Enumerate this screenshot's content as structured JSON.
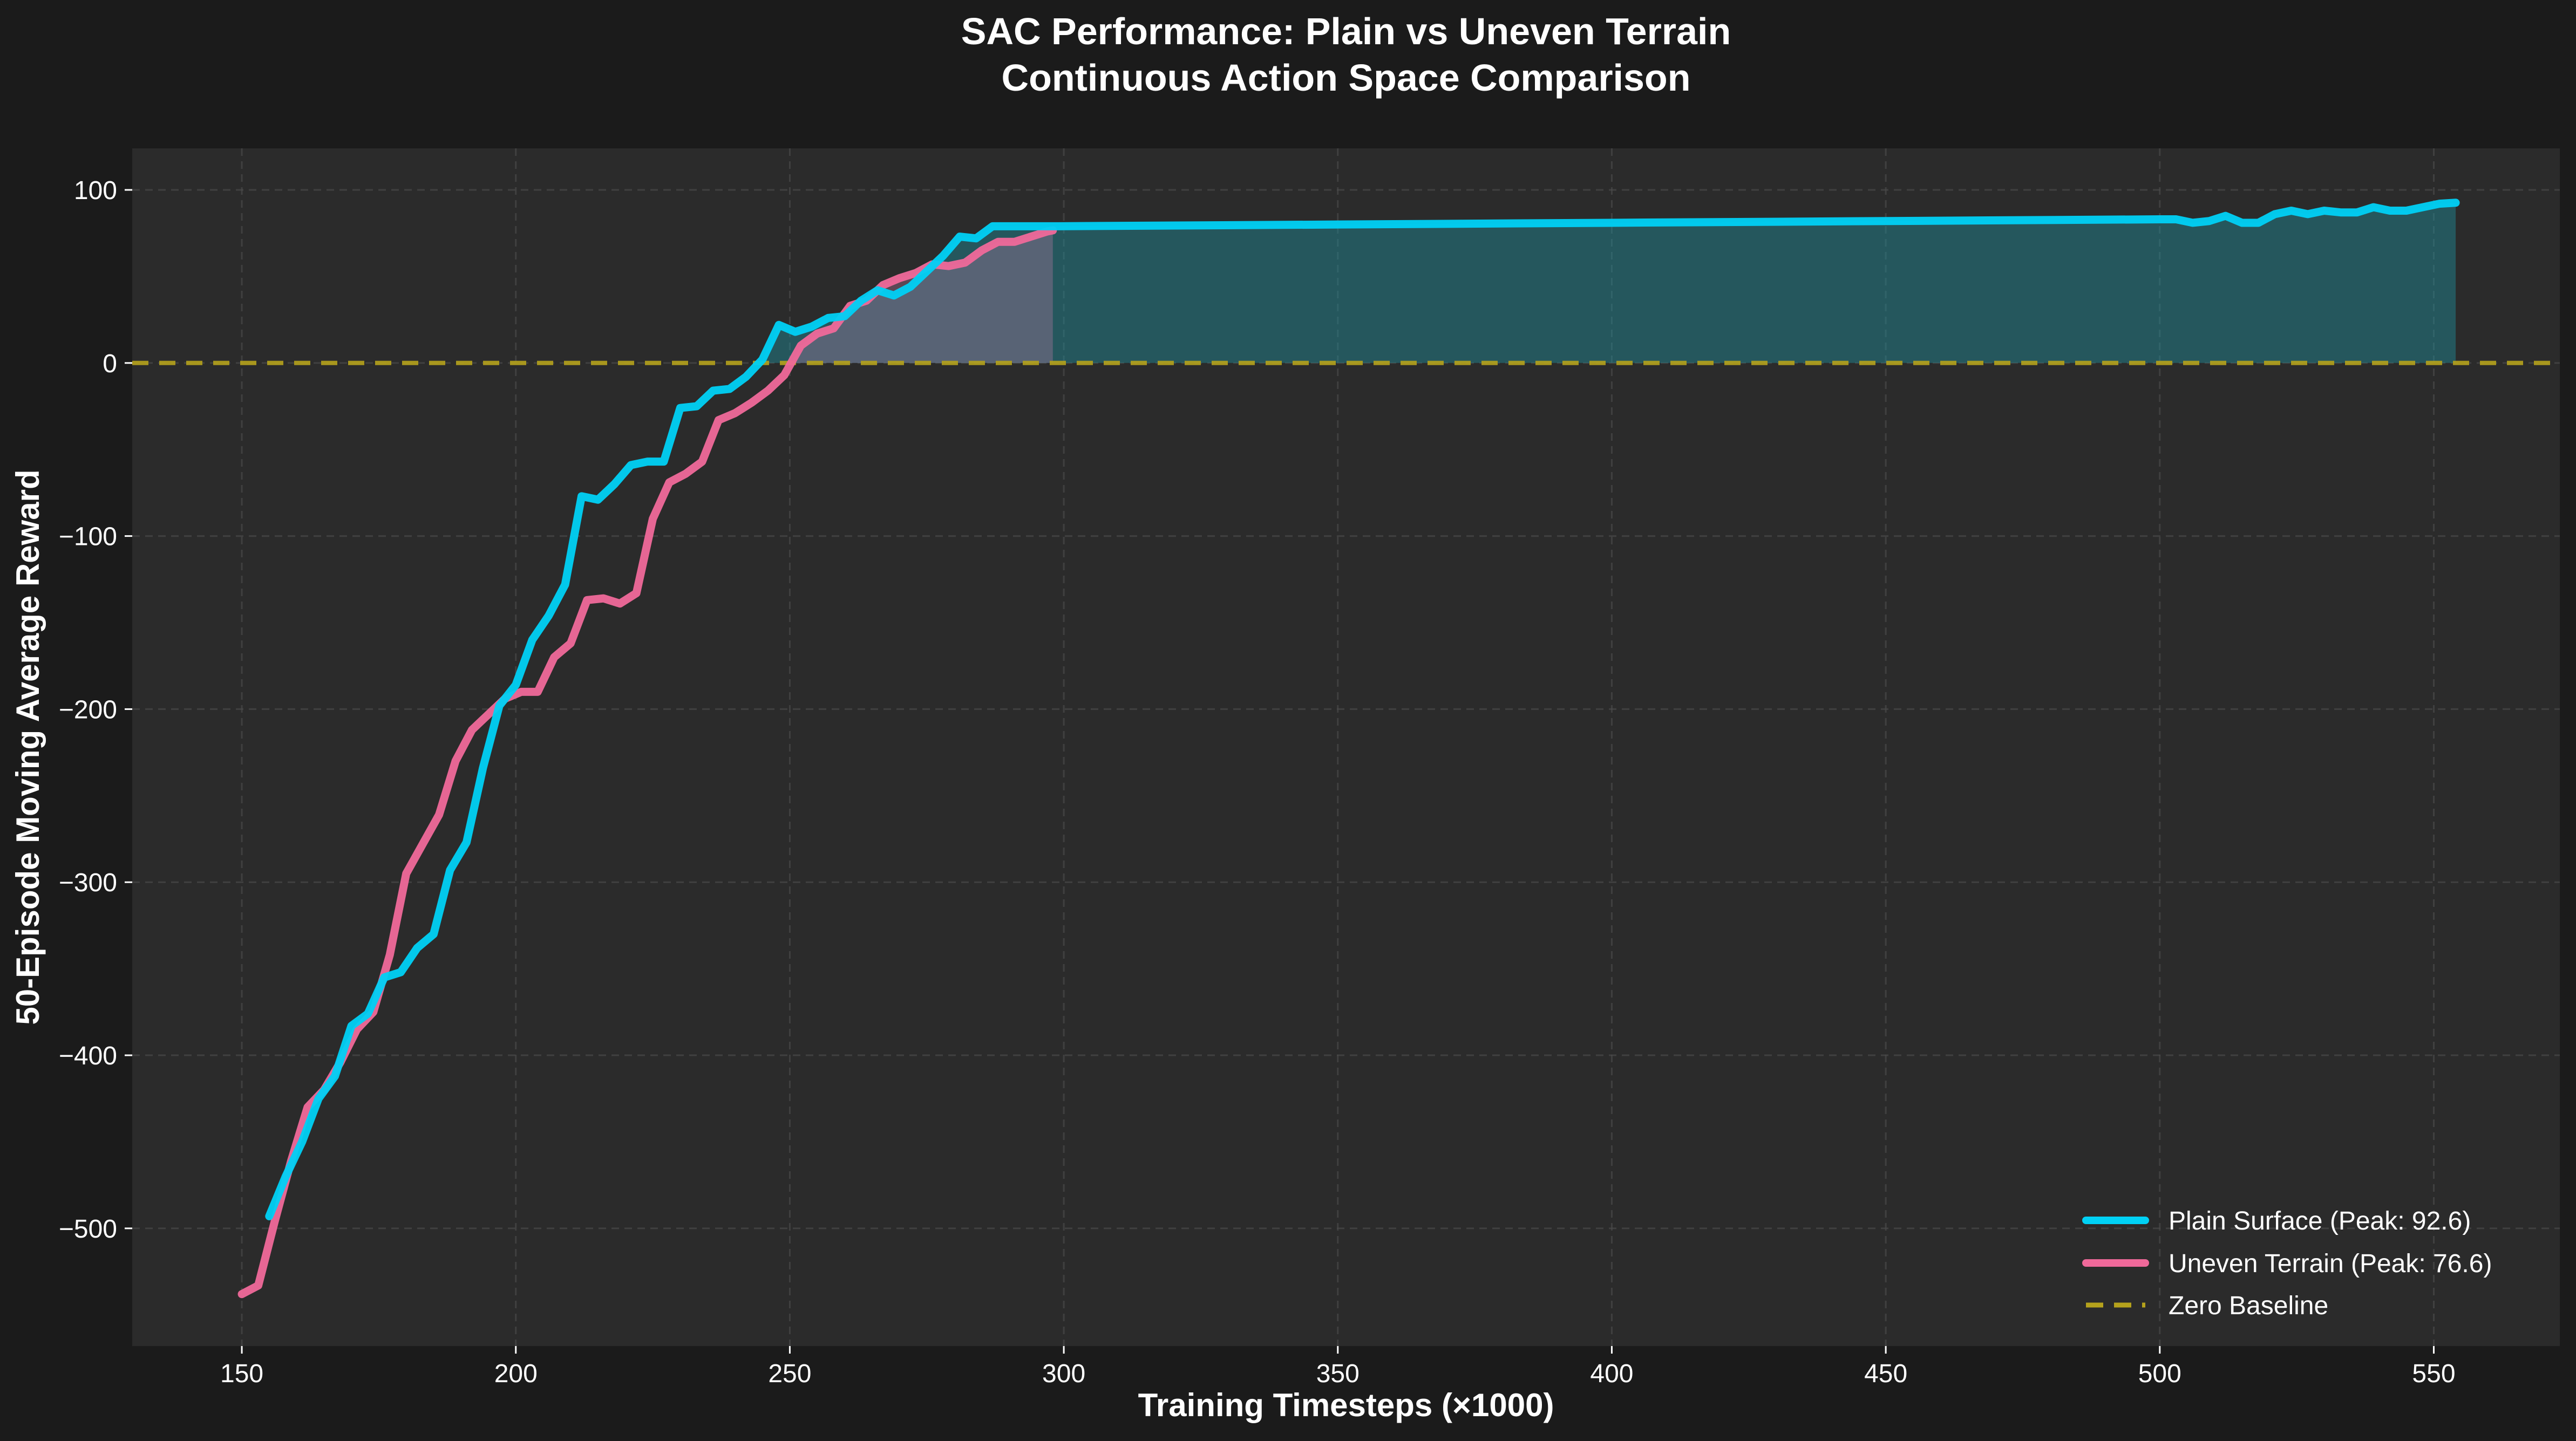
{
  "chart_data": {
    "type": "line",
    "title": "SAC Performance: Plain vs Uneven Terrain",
    "subtitle": "Continuous Action Space Comparison",
    "xlabel": "Training Timesteps (×1000)",
    "ylabel": "50-Episode Moving Average Reward",
    "xlim": [
      130,
      573
    ],
    "ylim": [
      -568,
      124
    ],
    "xticks": [
      150,
      200,
      250,
      300,
      350,
      400,
      450,
      500,
      550
    ],
    "yticks": [
      -500,
      -400,
      -300,
      -200,
      -100,
      0,
      100
    ],
    "ytick_labels": [
      "−500",
      "−400",
      "−300",
      "−200",
      "−100",
      "0",
      "100"
    ],
    "grid": true,
    "legend_position": "bottom-right",
    "colors": {
      "background": "#1b1b1b",
      "plot_background": "#2b2b2b",
      "grid": "#4a4a4a",
      "baseline": "#b5a21c",
      "fill": "#2a6b72"
    },
    "series": [
      {
        "name": "Plain Surface (Peak: 92.6)",
        "color": "#00d1f5",
        "x": [
          155,
          158,
          161,
          164,
          167,
          170,
          173,
          176,
          179,
          182,
          185,
          188,
          191,
          194,
          197,
          200,
          203,
          206,
          209,
          212,
          215,
          218,
          221,
          224,
          227,
          230,
          233,
          236,
          239,
          242,
          245,
          248,
          251,
          254,
          257,
          260,
          263,
          266,
          269,
          272,
          275,
          278,
          281,
          284,
          287,
          290,
          293,
          296,
          299,
          350,
          400,
          450,
          500,
          503,
          506,
          509,
          512,
          515,
          518,
          521,
          524,
          527,
          530,
          533,
          536,
          539,
          542,
          545,
          548,
          551,
          554
        ],
        "y": [
          -493,
          -470,
          -450,
          -425,
          -412,
          -383,
          -376,
          -355,
          -352,
          -338,
          -330,
          -293,
          -277,
          -234,
          -198,
          -186,
          -160,
          -146,
          -128,
          -77,
          -79,
          -70,
          -59,
          -57,
          -57,
          -26,
          -25,
          -16,
          -15,
          -8,
          2,
          22,
          18,
          21,
          26,
          27,
          36,
          42,
          39,
          44,
          53,
          62,
          73,
          72,
          79,
          79,
          79,
          79,
          79,
          80,
          81,
          82,
          83,
          83,
          81,
          82,
          85,
          81,
          81,
          86,
          88,
          86,
          88,
          87,
          87,
          90,
          88,
          88,
          90,
          92,
          92.6
        ]
      },
      {
        "name": "Uneven Terrain (Peak: 76.6)",
        "color": "#f0699a",
        "x": [
          150,
          153,
          156,
          159,
          162,
          165,
          168,
          171,
          174,
          177,
          180,
          183,
          186,
          189,
          192,
          195,
          198,
          201,
          204,
          207,
          210,
          213,
          216,
          219,
          222,
          225,
          228,
          231,
          234,
          237,
          240,
          243,
          246,
          249,
          252,
          255,
          258,
          261,
          264,
          267,
          270,
          273,
          276,
          279,
          282,
          285,
          288,
          291,
          294,
          297,
          298
        ],
        "y": [
          -538,
          -533,
          -496,
          -461,
          -430,
          -420,
          -404,
          -385,
          -375,
          -342,
          -295,
          -278,
          -261,
          -230,
          -212,
          -203,
          -194,
          -190,
          -190,
          -170,
          -162,
          -137,
          -136,
          -139,
          -133,
          -90,
          -69,
          -64,
          -57,
          -33,
          -29,
          -23,
          -16,
          -7,
          10,
          17,
          20,
          33,
          36,
          45,
          49,
          52,
          57,
          56,
          58,
          65,
          70,
          70,
          73,
          76,
          76.6
        ]
      },
      {
        "name": "Zero Baseline",
        "color": "#b5a21c",
        "dashed": true,
        "y_constant": 0
      }
    ]
  }
}
